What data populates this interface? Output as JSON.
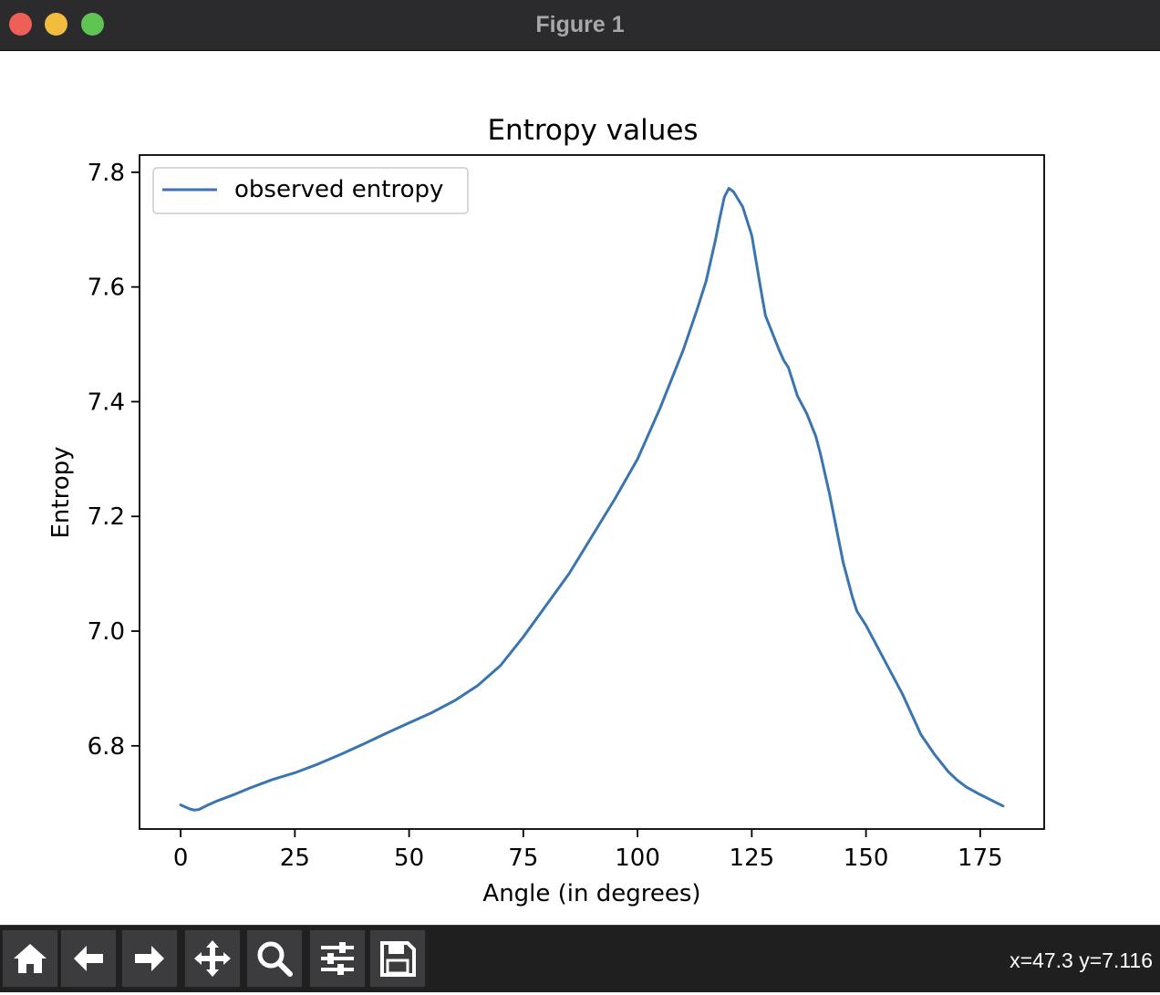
{
  "window": {
    "title": "Figure 1"
  },
  "toolbar": {
    "buttons": [
      {
        "name": "home",
        "icon": "home-icon"
      },
      {
        "name": "back",
        "icon": "arrow-left-icon"
      },
      {
        "name": "forward",
        "icon": "arrow-right-icon"
      },
      {
        "name": "pan",
        "icon": "move-icon"
      },
      {
        "name": "zoom",
        "icon": "magnifier-icon"
      },
      {
        "name": "configure-subplots",
        "icon": "sliders-icon"
      },
      {
        "name": "save",
        "icon": "floppy-disk-icon"
      }
    ],
    "coordinates": "x=47.3 y=7.116"
  },
  "colors": {
    "series": "#3a75b0"
  },
  "chart_data": {
    "type": "line",
    "title": "Entropy values",
    "xlabel": "Angle (in degrees)",
    "ylabel": "Entropy",
    "xlim": [
      -9,
      189
    ],
    "ylim": [
      6.655,
      7.83
    ],
    "xticks": [
      0,
      25,
      50,
      75,
      100,
      125,
      150,
      175
    ],
    "yticks": [
      6.8,
      7.0,
      7.2,
      7.4,
      7.6,
      7.8
    ],
    "xtick_labels": [
      "0",
      "25",
      "50",
      "75",
      "100",
      "125",
      "150",
      "175"
    ],
    "ytick_labels": [
      "6.8",
      "7.0",
      "7.2",
      "7.4",
      "7.6",
      "7.8"
    ],
    "legend": {
      "placement": "upper-left",
      "entries": [
        "observed entropy"
      ]
    },
    "grid": false,
    "series": [
      {
        "name": "observed entropy",
        "x": [
          0,
          2,
          3,
          4,
          6,
          8,
          10,
          12,
          15,
          20,
          25,
          30,
          35,
          40,
          45,
          50,
          55,
          60,
          65,
          70,
          75,
          80,
          85,
          90,
          95,
          100,
          105,
          110,
          113,
          115,
          117,
          118,
          119,
          120,
          121,
          123,
          125,
          127,
          128,
          130,
          131,
          132,
          133,
          135,
          137,
          139,
          140,
          142,
          145,
          147,
          148,
          150,
          152,
          155,
          158,
          160,
          162,
          165,
          168,
          170,
          172,
          175,
          178,
          180
        ],
        "y": [
          6.697,
          6.69,
          6.688,
          6.689,
          6.697,
          6.704,
          6.71,
          6.716,
          6.726,
          6.741,
          6.753,
          6.768,
          6.785,
          6.803,
          6.822,
          6.84,
          6.858,
          6.879,
          6.905,
          6.94,
          6.99,
          7.045,
          7.1,
          7.165,
          7.23,
          7.3,
          7.39,
          7.49,
          7.56,
          7.61,
          7.68,
          7.72,
          7.757,
          7.772,
          7.766,
          7.74,
          7.69,
          7.595,
          7.55,
          7.51,
          7.49,
          7.472,
          7.46,
          7.41,
          7.38,
          7.34,
          7.31,
          7.24,
          7.12,
          7.06,
          7.035,
          7.01,
          6.98,
          6.935,
          6.89,
          6.855,
          6.82,
          6.785,
          6.755,
          6.74,
          6.728,
          6.715,
          6.703,
          6.695
        ]
      }
    ]
  }
}
